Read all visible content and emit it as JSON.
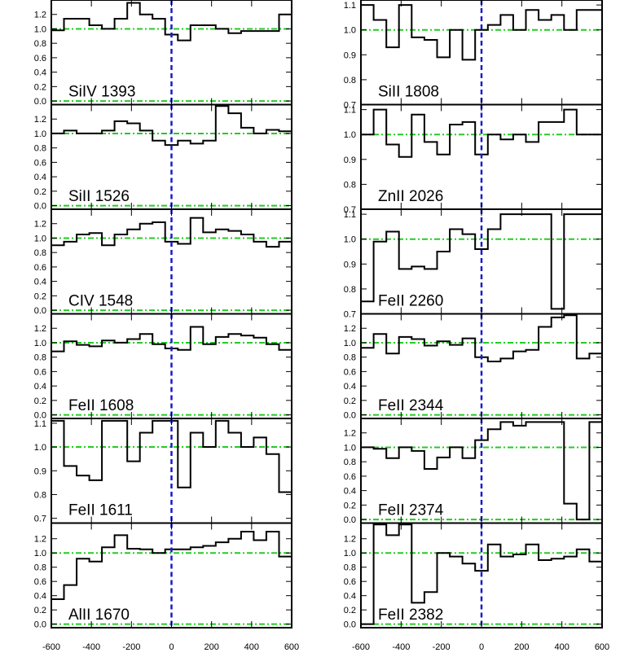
{
  "chart_data": {
    "type": "line",
    "xlim": [
      -600,
      600
    ],
    "x_ticks": [
      -600,
      -400,
      -200,
      0,
      200,
      400,
      600
    ],
    "x_tick_labels": [
      "-600",
      "-400",
      "-200",
      "0",
      "200",
      "400",
      "600"
    ],
    "colors": {
      "flux": "#000000",
      "continuum": "#22cc22",
      "zero_velocity": "#1a1acc"
    },
    "panels": [
      {
        "label": "SiIV 1393",
        "column": "left",
        "ylim": [
          -0.05,
          1.4
        ],
        "yticks": [
          0.0,
          0.2,
          0.4,
          0.6,
          0.8,
          1.0,
          1.2
        ],
        "ytick_labels": [
          "0.0",
          "0.2",
          "0.4",
          "0.6",
          "0.8",
          "1.0",
          "1.2"
        ],
        "hlines": [
          0.0,
          1.0
        ],
        "flux": [
          0.98,
          1.14,
          1.14,
          1.05,
          1.0,
          1.14,
          1.36,
          1.2,
          1.14,
          0.92,
          0.84,
          1.05,
          1.05,
          1.0,
          0.94,
          0.97,
          0.97,
          0.97,
          1.2
        ]
      },
      {
        "label": "SiII 1526",
        "column": "left",
        "ylim": [
          -0.05,
          1.4
        ],
        "yticks": [
          0.0,
          0.2,
          0.4,
          0.6,
          0.8,
          1.0,
          1.2
        ],
        "ytick_labels": [
          "0.0",
          "0.2",
          "0.4",
          "0.6",
          "0.8",
          "1.0",
          "1.2"
        ],
        "hlines": [
          0.0,
          1.0
        ],
        "flux": [
          1.0,
          1.04,
          1.0,
          1.0,
          1.04,
          1.17,
          1.14,
          1.04,
          0.9,
          0.84,
          0.9,
          0.86,
          0.9,
          1.38,
          1.28,
          1.08,
          1.0,
          1.05,
          1.03
        ]
      },
      {
        "label": "CIV 1548",
        "column": "left",
        "ylim": [
          -0.05,
          1.4
        ],
        "yticks": [
          0.0,
          0.2,
          0.4,
          0.6,
          0.8,
          1.0,
          1.2
        ],
        "ytick_labels": [
          "0.0",
          "0.2",
          "0.4",
          "0.6",
          "0.8",
          "1.0",
          "1.2"
        ],
        "hlines": [
          0.0,
          1.0
        ],
        "flux": [
          0.9,
          0.95,
          1.05,
          1.07,
          0.9,
          1.05,
          1.12,
          1.2,
          1.22,
          0.95,
          0.92,
          1.28,
          1.08,
          1.12,
          1.1,
          1.05,
          0.95,
          0.88,
          0.95
        ]
      },
      {
        "label": "FeII 1608",
        "column": "left",
        "ylim": [
          -0.05,
          1.4
        ],
        "yticks": [
          0.0,
          0.2,
          0.4,
          0.6,
          0.8,
          1.0,
          1.2
        ],
        "ytick_labels": [
          "0.0",
          "0.2",
          "0.4",
          "0.6",
          "0.8",
          "1.0",
          "1.2"
        ],
        "hlines": [
          0.0,
          1.0
        ],
        "flux": [
          0.88,
          1.02,
          0.97,
          0.95,
          1.03,
          1.0,
          1.05,
          1.12,
          0.98,
          0.92,
          0.9,
          1.22,
          0.98,
          1.08,
          1.12,
          1.1,
          1.07,
          0.98,
          0.9
        ]
      },
      {
        "label": "FeII 1611",
        "column": "left",
        "ylim": [
          0.68,
          1.12
        ],
        "yticks": [
          0.7,
          0.8,
          0.9,
          1.0,
          1.1
        ],
        "ytick_labels": [
          "0.7",
          "0.8",
          "0.9",
          "1.0",
          "1.1"
        ],
        "hlines": [
          1.0
        ],
        "flux": [
          1.11,
          0.92,
          0.88,
          0.86,
          1.11,
          1.11,
          0.94,
          1.06,
          1.11,
          1.11,
          0.83,
          1.06,
          1.0,
          1.11,
          1.06,
          1.0,
          1.04,
          0.97,
          0.81
        ]
      },
      {
        "label": "AlII 1670",
        "column": "left",
        "ylim": [
          -0.05,
          1.42
        ],
        "yticks": [
          0.0,
          0.2,
          0.4,
          0.6,
          0.8,
          1.0,
          1.2
        ],
        "ytick_labels": [
          "0.0",
          "0.2",
          "0.4",
          "0.6",
          "0.8",
          "1.0",
          "1.2"
        ],
        "hlines": [
          0.0,
          1.0
        ],
        "flux": [
          0.35,
          0.55,
          0.92,
          0.88,
          1.08,
          1.25,
          1.06,
          1.05,
          1.0,
          1.05,
          1.05,
          1.08,
          1.1,
          1.15,
          1.2,
          1.3,
          1.18,
          1.3,
          0.95
        ]
      },
      {
        "label": "SiII 1808",
        "column": "right",
        "ylim": [
          0.7,
          1.12
        ],
        "yticks": [
          0.7,
          0.8,
          0.9,
          1.0,
          1.1
        ],
        "ytick_labels": [
          "0.7",
          "0.8",
          "0.9",
          "1.0",
          "1.1"
        ],
        "hlines": [
          1.0
        ],
        "flux": [
          1.1,
          1.04,
          0.93,
          1.1,
          0.97,
          0.96,
          0.89,
          1.0,
          0.88,
          1.0,
          1.02,
          1.06,
          1.0,
          1.08,
          1.04,
          1.06,
          1.0,
          1.08,
          1.08
        ]
      },
      {
        "label": "ZnII 2026",
        "column": "right",
        "ylim": [
          0.7,
          1.12
        ],
        "yticks": [
          0.7,
          0.8,
          0.9,
          1.0,
          1.1
        ],
        "ytick_labels": [
          "0.7",
          "0.8",
          "0.9",
          "1.0",
          "1.1"
        ],
        "hlines": [
          1.0
        ],
        "flux": [
          1.0,
          1.1,
          0.96,
          0.91,
          1.08,
          0.97,
          0.92,
          1.04,
          1.05,
          0.92,
          1.0,
          0.98,
          1.0,
          0.97,
          1.05,
          1.05,
          1.1,
          1.0,
          1.0
        ]
      },
      {
        "label": "FeII 2260",
        "column": "right",
        "ylim": [
          0.7,
          1.12
        ],
        "yticks": [
          0.7,
          0.8,
          0.9,
          1.0,
          1.1
        ],
        "ytick_labels": [
          "0.7",
          "0.8",
          "0.9",
          "1.0",
          "1.1"
        ],
        "hlines": [
          1.0
        ],
        "flux": [
          0.75,
          0.99,
          1.03,
          0.88,
          0.89,
          0.88,
          0.95,
          1.04,
          1.02,
          0.96,
          1.04,
          1.1,
          1.1,
          1.1,
          1.1,
          0.72,
          1.1,
          1.1,
          1.1
        ]
      },
      {
        "label": "FeII 2344",
        "column": "right",
        "ylim": [
          -0.05,
          1.4
        ],
        "yticks": [
          0.0,
          0.2,
          0.4,
          0.6,
          0.8,
          1.0,
          1.2
        ],
        "ytick_labels": [
          "0.0",
          "0.2",
          "0.4",
          "0.6",
          "0.8",
          "1.0",
          "1.2"
        ],
        "hlines": [
          0.0,
          1.0
        ],
        "flux": [
          0.93,
          1.12,
          0.85,
          1.08,
          1.05,
          0.96,
          1.02,
          0.97,
          1.06,
          0.8,
          0.74,
          0.78,
          0.88,
          0.9,
          1.22,
          1.35,
          1.38,
          0.78,
          0.85
        ]
      },
      {
        "label": "FeII 2374",
        "column": "right",
        "ylim": [
          -0.05,
          1.4
        ],
        "yticks": [
          0.0,
          0.2,
          0.4,
          0.6,
          0.8,
          1.0,
          1.2
        ],
        "ytick_labels": [
          "0.0",
          "0.2",
          "0.4",
          "0.6",
          "0.8",
          "1.0",
          "1.2"
        ],
        "hlines": [
          0.0,
          1.0
        ],
        "flux": [
          1.0,
          0.98,
          0.85,
          1.0,
          0.95,
          0.7,
          0.86,
          1.0,
          0.85,
          1.1,
          1.25,
          1.35,
          1.3,
          1.35,
          1.35,
          1.35,
          0.22,
          0.0,
          1.35
        ]
      },
      {
        "label": "FeII 2382",
        "column": "right",
        "ylim": [
          -0.05,
          1.42
        ],
        "yticks": [
          0.0,
          0.2,
          0.4,
          0.6,
          0.8,
          1.0,
          1.2
        ],
        "ytick_labels": [
          "0.0",
          "0.2",
          "0.4",
          "0.6",
          "0.8",
          "1.0",
          "1.2"
        ],
        "hlines": [
          0.0,
          1.0
        ],
        "flux": [
          0.0,
          1.4,
          1.25,
          1.4,
          0.3,
          0.45,
          1.0,
          0.95,
          0.85,
          0.75,
          1.12,
          0.95,
          0.98,
          1.12,
          0.9,
          0.92,
          0.95,
          1.05,
          0.88
        ]
      }
    ]
  }
}
